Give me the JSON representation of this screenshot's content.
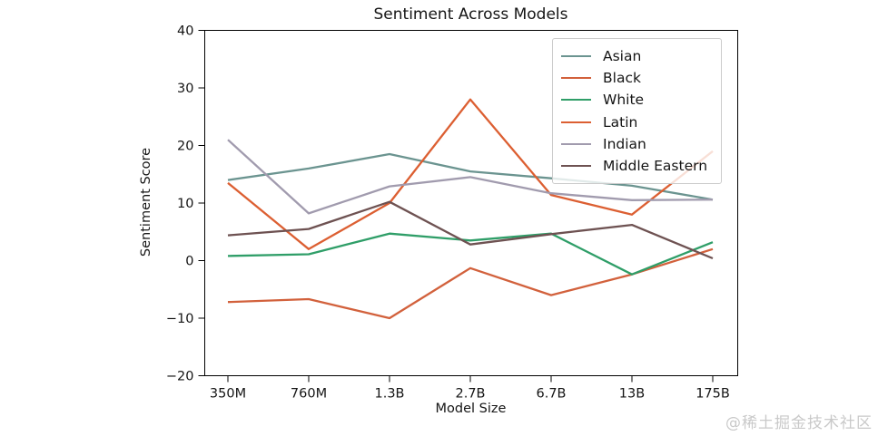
{
  "watermark": "@稀土掘金技术社区",
  "chart_data": {
    "type": "line",
    "title": "Sentiment Across Models",
    "xlabel": "Model Size",
    "ylabel": "Sentiment Score",
    "categories": [
      "350M",
      "760M",
      "1.3B",
      "2.7B",
      "6.7B",
      "13B",
      "175B"
    ],
    "series": [
      {
        "name": "Asian",
        "color": "#6b9490",
        "values": [
          14,
          16,
          18.5,
          15.5,
          14.3,
          13,
          10.6
        ]
      },
      {
        "name": "Black",
        "color": "#d2613c",
        "values": [
          -7.2,
          -6.7,
          -10,
          -1.3,
          -6,
          -2.4,
          2
        ]
      },
      {
        "name": "White",
        "color": "#2f9e68",
        "values": [
          0.8,
          1.1,
          4.7,
          3.5,
          4.7,
          -2.4,
          3.2
        ]
      },
      {
        "name": "Latin",
        "color": "#dc5f32",
        "values": [
          13.5,
          2,
          10,
          28,
          11.4,
          8,
          19
        ]
      },
      {
        "name": "Indian",
        "color": "#a19bae",
        "values": [
          21,
          8.2,
          12.9,
          14.5,
          11.7,
          10.5,
          10.6
        ]
      },
      {
        "name": "Middle Eastern",
        "color": "#6e5252",
        "values": [
          4.4,
          5.5,
          10.2,
          2.8,
          4.6,
          6.2,
          0.4
        ]
      }
    ],
    "ylim": [
      -20,
      40
    ],
    "yticks": [
      40,
      30,
      20,
      10,
      0,
      -10,
      -20
    ],
    "grid": false,
    "legend_position": "upper right"
  }
}
